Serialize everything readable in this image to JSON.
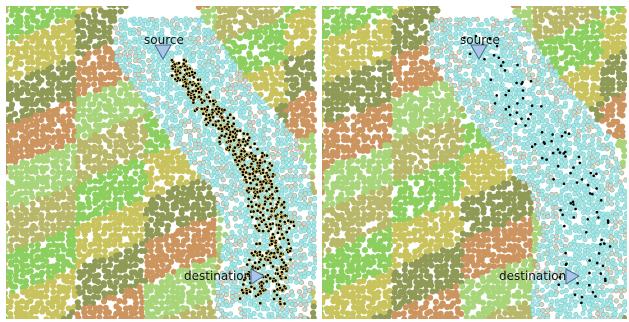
{
  "panels": [
    {
      "id": "left",
      "labels": {
        "source": "source",
        "destination": "destination"
      },
      "path_style": "dense"
    },
    {
      "id": "right",
      "labels": {
        "source": "source",
        "destination": "destination"
      },
      "path_style": "sparse"
    }
  ],
  "colors": {
    "region_palette": [
      "#8ccf5e",
      "#c9c35e",
      "#8f9a57",
      "#cc9560",
      "#a8d47a",
      "#b9b86a"
    ],
    "corridor_fill": "#a8e6e6",
    "corridor_outline": "#d79a78",
    "path_node": "#000000",
    "path_node_halo": "#e8d27a",
    "marker": "#a9c6e8",
    "marker_stroke": "#4a6b8c"
  },
  "icons": {
    "source_marker": "triangle-down",
    "destination_marker": "triangle-right"
  }
}
